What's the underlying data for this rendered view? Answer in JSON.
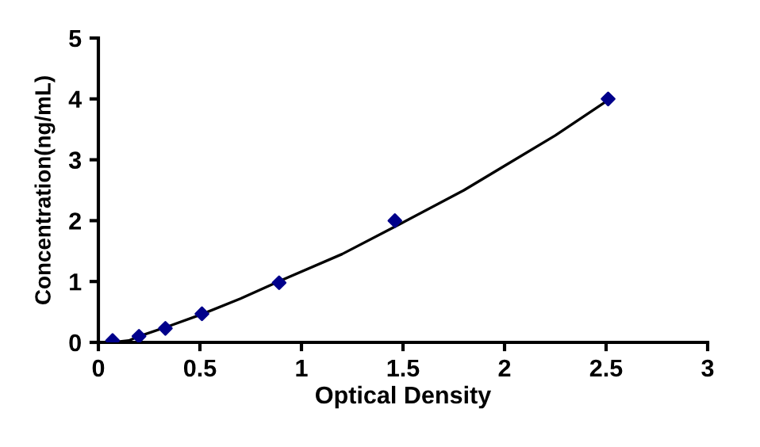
{
  "chart_data": {
    "type": "line",
    "xlabel": "Optical Density",
    "ylabel": "Concentration(ng/mL)",
    "xlim": [
      0,
      3
    ],
    "xticks": [
      0,
      0.5,
      1,
      1.5,
      2,
      2.5,
      3
    ],
    "ylim": [
      0,
      5
    ],
    "yticks": [
      0,
      1,
      2,
      3,
      4,
      5
    ],
    "grid": false,
    "legend": false,
    "series": [
      {
        "type": "scatter",
        "color": "#00008b",
        "marker": "diamond",
        "x": [
          0.07,
          0.2,
          0.33,
          0.51,
          0.89,
          1.46,
          2.51
        ],
        "values": [
          0.03,
          0.1,
          0.23,
          0.47,
          0.98,
          2.0,
          4.0
        ]
      },
      {
        "color": "#000000",
        "marker": "none",
        "x": [
          0.07,
          0.15,
          0.2,
          0.35,
          0.5,
          0.7,
          0.9,
          1.2,
          1.46,
          1.8,
          2.0,
          2.25,
          2.51
        ],
        "values": [
          0.0,
          0.03,
          0.1,
          0.27,
          0.45,
          0.72,
          1.02,
          1.45,
          1.9,
          2.5,
          2.9,
          3.4,
          3.98
        ]
      }
    ]
  }
}
